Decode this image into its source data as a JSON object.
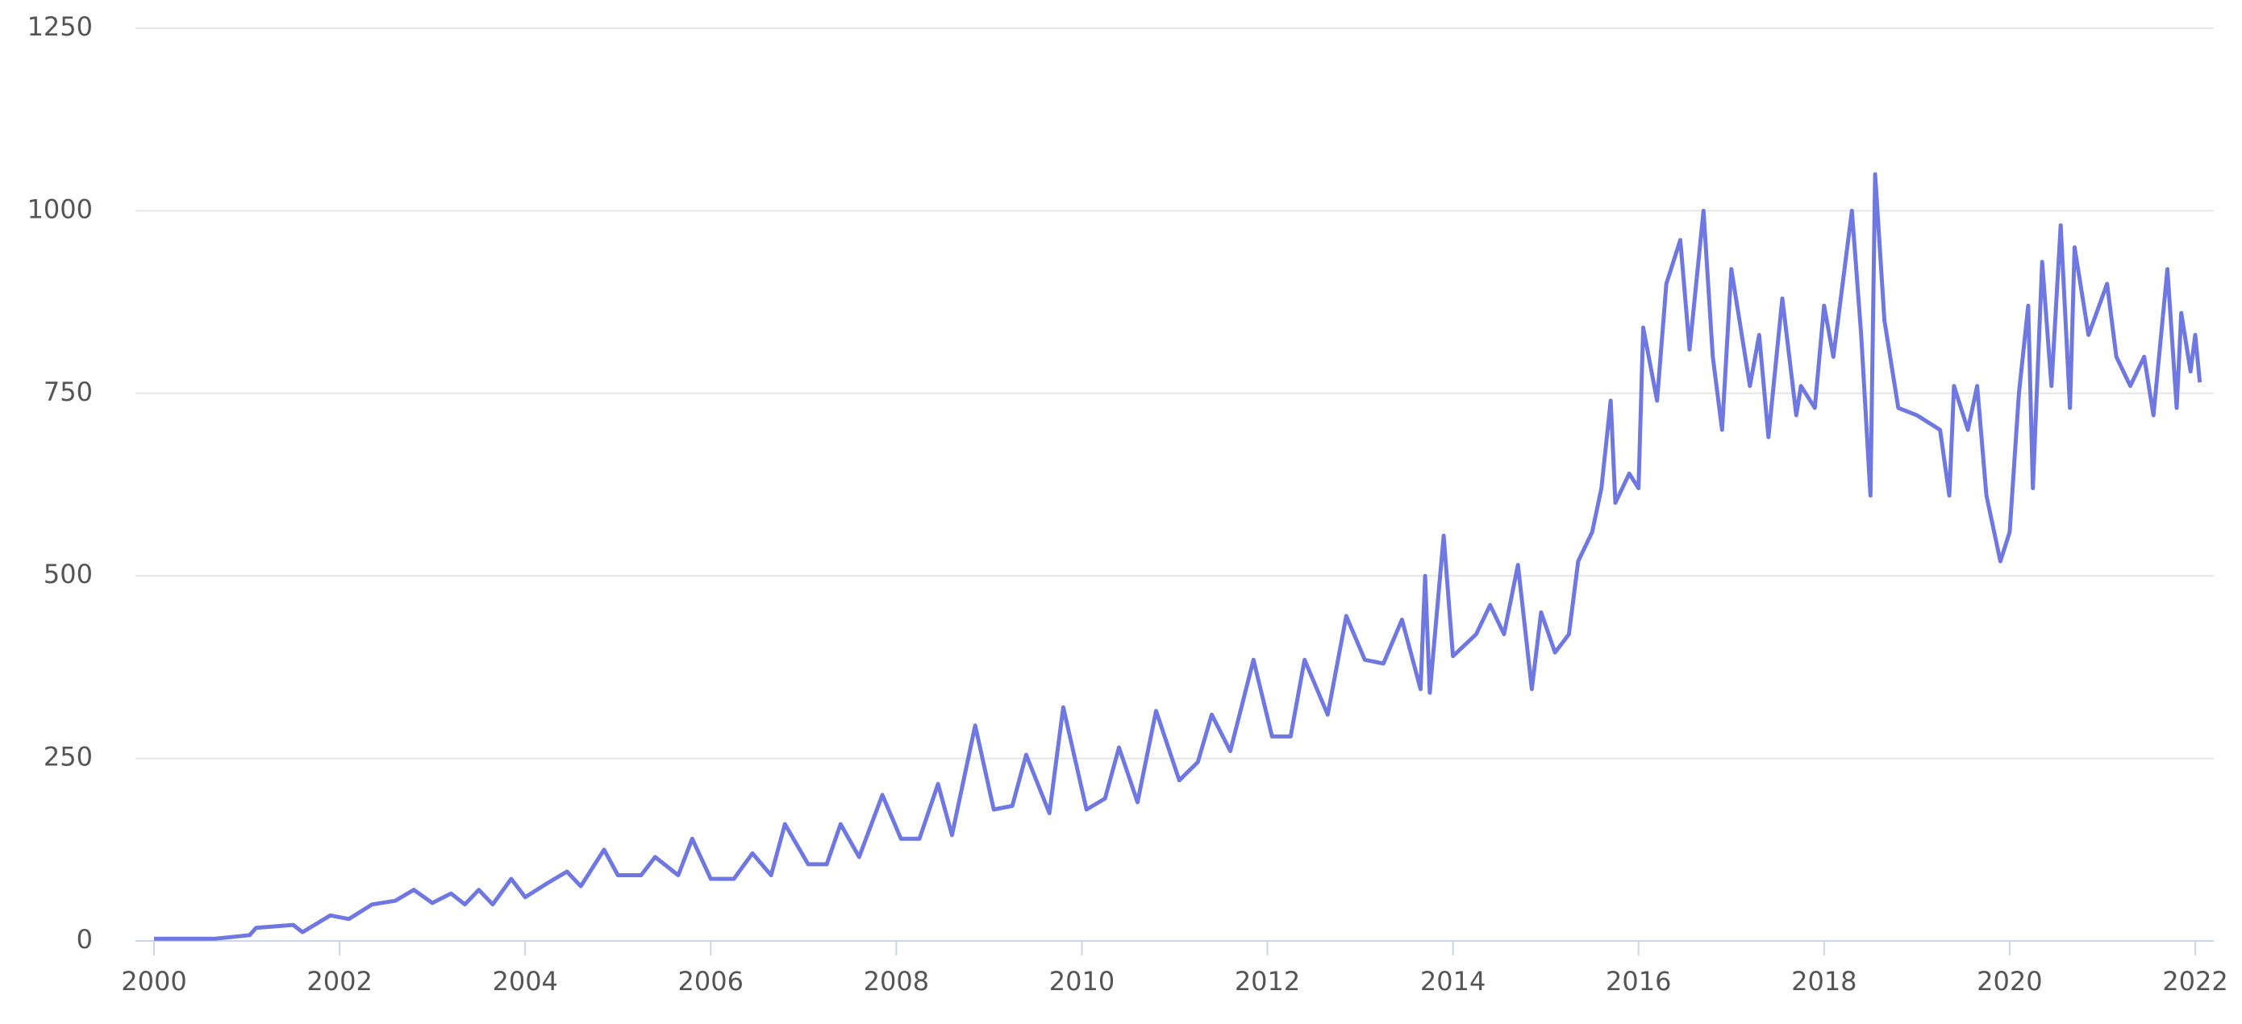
{
  "chart_data": {
    "type": "line",
    "color": "#6f78e0",
    "grid": true,
    "xlim": [
      1999.8,
      2022.2
    ],
    "xticks": [
      2000,
      2002,
      2004,
      2006,
      2008,
      2010,
      2012,
      2014,
      2016,
      2018,
      2020,
      2022
    ],
    "ylim": [
      0,
      1250
    ],
    "yticks": [
      0,
      250,
      500,
      750,
      1000,
      1250
    ],
    "x": [
      2000.0,
      2000.65,
      2001.03,
      2001.1,
      2001.5,
      2001.6,
      2001.9,
      2002.1,
      2002.35,
      2002.6,
      2002.8,
      2003.0,
      2003.2,
      2003.35,
      2003.5,
      2003.65,
      2003.85,
      2004.0,
      2004.25,
      2004.45,
      2004.6,
      2004.85,
      2005.0,
      2005.25,
      2005.4,
      2005.65,
      2005.8,
      2006.0,
      2006.25,
      2006.45,
      2006.65,
      2006.8,
      2007.05,
      2007.25,
      2007.4,
      2007.6,
      2007.85,
      2008.05,
      2008.25,
      2008.45,
      2008.6,
      2008.85,
      2009.05,
      2009.25,
      2009.4,
      2009.65,
      2009.8,
      2010.05,
      2010.25,
      2010.4,
      2010.6,
      2010.8,
      2011.05,
      2011.25,
      2011.4,
      2011.6,
      2011.85,
      2012.05,
      2012.25,
      2012.4,
      2012.65,
      2012.85,
      2013.05,
      2013.25,
      2013.45,
      2013.65,
      2013.7,
      2013.75,
      2013.9,
      2014.0,
      2014.25,
      2014.4,
      2014.55,
      2014.7,
      2014.85,
      2014.95,
      2015.1,
      2015.25,
      2015.35,
      2015.5,
      2015.6,
      2015.7,
      2015.75,
      2015.9,
      2016.0,
      2016.05,
      2016.2,
      2016.3,
      2016.45,
      2016.55,
      2016.7,
      2016.8,
      2016.9,
      2017.0,
      2017.2,
      2017.3,
      2017.4,
      2017.55,
      2017.7,
      2017.75,
      2017.9,
      2018.0,
      2018.1,
      2018.3,
      2018.4,
      2018.5,
      2018.55,
      2018.65,
      2018.8,
      2019.0,
      2019.25,
      2019.35,
      2019.4,
      2019.55,
      2019.65,
      2019.75,
      2019.9,
      2020.0,
      2020.1,
      2020.2,
      2020.25,
      2020.35,
      2020.45,
      2020.55,
      2020.65,
      2020.7,
      2020.85,
      2021.05,
      2021.15,
      2021.3,
      2021.45,
      2021.55,
      2021.7,
      2021.8,
      2021.85,
      2021.95,
      2022.0,
      2022.05
    ],
    "values": [
      3,
      3,
      8,
      18,
      22,
      12,
      35,
      30,
      50,
      55,
      70,
      52,
      65,
      50,
      70,
      50,
      85,
      60,
      80,
      95,
      75,
      125,
      90,
      90,
      115,
      90,
      140,
      85,
      85,
      120,
      90,
      160,
      105,
      105,
      160,
      115,
      200,
      140,
      140,
      215,
      145,
      295,
      180,
      185,
      255,
      175,
      320,
      180,
      195,
      265,
      190,
      315,
      220,
      245,
      310,
      260,
      385,
      280,
      280,
      385,
      310,
      445,
      385,
      380,
      440,
      345,
      500,
      340,
      555,
      390,
      420,
      460,
      420,
      515,
      345,
      450,
      395,
      420,
      520,
      560,
      620,
      740,
      600,
      640,
      620,
      840,
      740,
      900,
      960,
      810,
      1000,
      800,
      700,
      920,
      760,
      830,
      690,
      880,
      720,
      760,
      730,
      870,
      800,
      1000,
      830,
      610,
      1050,
      850,
      730,
      720,
      700,
      610,
      760,
      700,
      760,
      610,
      520,
      560,
      750,
      870,
      620,
      930,
      760,
      980,
      730,
      950,
      830,
      900,
      800,
      760,
      800,
      720,
      920,
      730,
      860,
      780,
      830,
      765
    ]
  }
}
